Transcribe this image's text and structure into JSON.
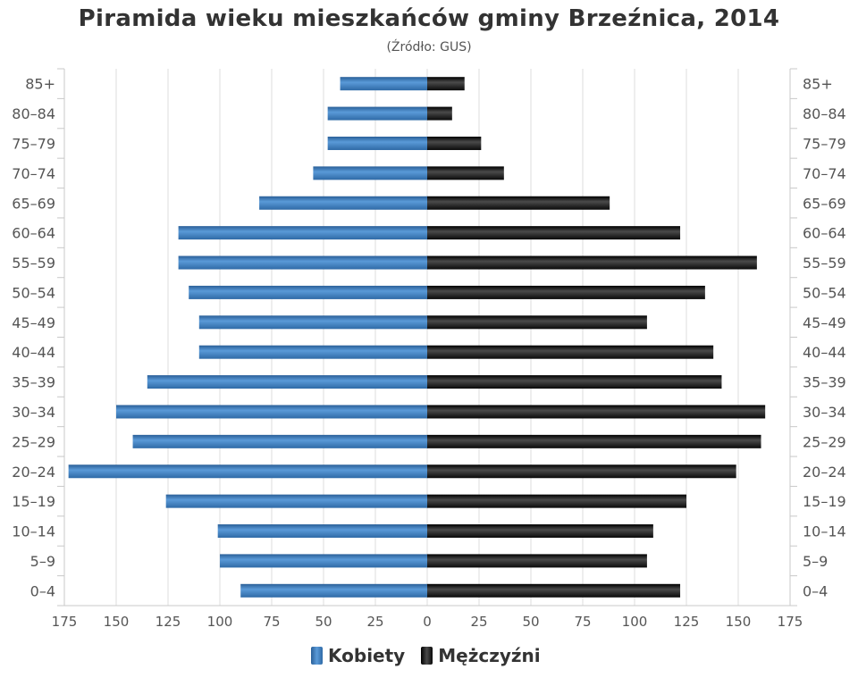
{
  "chart_data": {
    "type": "bar",
    "orientation": "horizontal-population-pyramid",
    "title": "Piramida wieku mieszkańców gminy Brzeźnica, 2014",
    "subtitle": "(Źródło: GUS)",
    "categories": [
      "85+",
      "80-84",
      "75-79",
      "70-74",
      "65-69",
      "60-64",
      "55-59",
      "50-54",
      "45-49",
      "40-44",
      "35-39",
      "30-34",
      "25-29",
      "20-24",
      "15-19",
      "10-14",
      "5-9",
      "0-4"
    ],
    "category_labels": [
      "85+",
      "80–84",
      "75–79",
      "70–74",
      "65–69",
      "60–64",
      "55–59",
      "50–54",
      "45–49",
      "40–44",
      "35–39",
      "30–34",
      "25–29",
      "20–24",
      "15–19",
      "10–14",
      "5–9",
      "0–4"
    ],
    "series": [
      {
        "name": "Kobiety",
        "color": "#3a78b7",
        "side": "left",
        "values": [
          42,
          48,
          48,
          55,
          81,
          120,
          120,
          115,
          110,
          110,
          135,
          150,
          142,
          173,
          126,
          101,
          100,
          90
        ]
      },
      {
        "name": "Mężczyźni",
        "color": "#111111",
        "side": "right",
        "values": [
          18,
          12,
          26,
          37,
          88,
          122,
          159,
          134,
          106,
          138,
          142,
          163,
          161,
          149,
          125,
          109,
          106,
          122
        ]
      }
    ],
    "xlim": [
      -175,
      175
    ],
    "xticks": [
      175,
      150,
      125,
      100,
      75,
      50,
      25,
      0,
      25,
      50,
      75,
      100,
      125,
      150,
      175
    ],
    "grid": true,
    "legend_position": "bottom-center"
  }
}
